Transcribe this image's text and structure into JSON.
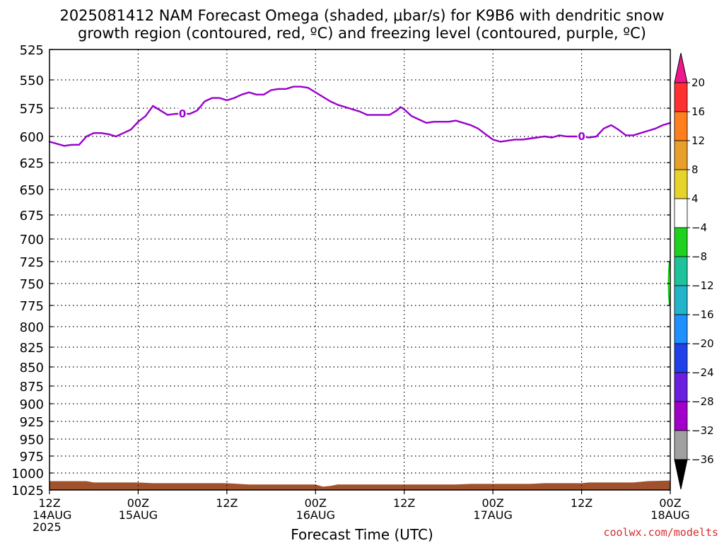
{
  "title_line1": "2025081412 NAM Forecast Omega (shaded, μbar/s) for K9B6 with dendritic snow",
  "title_line2": "growth region (contoured, red, ºC) and freezing level (contoured, purple, ºC)",
  "credit": "coolwx.com/modelts",
  "chart_data": {
    "type": "line",
    "xlabel": "Forecast Time (UTC)",
    "ylabel": "",
    "y_axis": "pressure (hPa), inverted, log-like",
    "ylim": [
      1025,
      525
    ],
    "y_ticks": [
      "525",
      "550",
      "575",
      "600",
      "625",
      "650",
      "675",
      "700",
      "725",
      "750",
      "775",
      "800",
      "825",
      "850",
      "875",
      "900",
      "925",
      "950",
      "975",
      "1000",
      "1025"
    ],
    "x_ticks": [
      {
        "hour": 0,
        "line1": "12Z",
        "line2": "14AUG",
        "line3": "2025"
      },
      {
        "hour": 12,
        "line1": "00Z",
        "line2": "15AUG",
        "line3": ""
      },
      {
        "hour": 24,
        "line1": "12Z",
        "line2": "",
        "line3": ""
      },
      {
        "hour": 36,
        "line1": "00Z",
        "line2": "16AUG",
        "line3": ""
      },
      {
        "hour": 48,
        "line1": "12Z",
        "line2": "",
        "line3": ""
      },
      {
        "hour": 60,
        "line1": "00Z",
        "line2": "17AUG",
        "line3": ""
      },
      {
        "hour": 72,
        "line1": "12Z",
        "line2": "",
        "line3": ""
      },
      {
        "hour": 84,
        "line1": "00Z",
        "line2": "18AUG",
        "line3": ""
      }
    ],
    "xlim": [
      0,
      84
    ],
    "grid": true,
    "freezing_level": {
      "color": "#9900cc",
      "contour_label": "0",
      "label_hours": [
        18,
        72
      ],
      "points": [
        [
          0,
          605
        ],
        [
          1,
          607
        ],
        [
          2,
          609
        ],
        [
          3,
          608
        ],
        [
          4,
          608
        ],
        [
          5,
          600
        ],
        [
          6,
          597
        ],
        [
          7,
          597
        ],
        [
          8,
          598
        ],
        [
          9,
          600
        ],
        [
          10,
          597
        ],
        [
          11,
          594
        ],
        [
          12,
          587
        ],
        [
          13,
          582
        ],
        [
          14,
          573
        ],
        [
          15,
          577
        ],
        [
          16,
          581
        ],
        [
          17,
          580
        ],
        [
          18,
          580
        ],
        [
          19,
          580
        ],
        [
          20,
          577
        ],
        [
          21,
          569
        ],
        [
          22,
          566
        ],
        [
          23,
          566
        ],
        [
          24,
          568
        ],
        [
          25,
          566
        ],
        [
          26,
          563
        ],
        [
          27,
          561
        ],
        [
          28,
          563
        ],
        [
          29,
          563
        ],
        [
          30,
          559
        ],
        [
          31,
          558
        ],
        [
          32,
          558
        ],
        [
          33,
          556
        ],
        [
          34,
          556
        ],
        [
          35,
          557
        ],
        [
          36,
          561
        ],
        [
          37,
          565
        ],
        [
          38,
          569
        ],
        [
          39,
          572
        ],
        [
          40,
          574
        ],
        [
          41,
          576
        ],
        [
          42,
          578
        ],
        [
          43,
          581
        ],
        [
          44,
          581
        ],
        [
          45,
          581
        ],
        [
          46,
          581
        ],
        [
          47,
          577
        ],
        [
          47.5,
          574
        ],
        [
          48,
          576
        ],
        [
          49,
          582
        ],
        [
          50,
          585
        ],
        [
          51,
          588
        ],
        [
          52,
          587
        ],
        [
          53,
          587
        ],
        [
          54,
          587
        ],
        [
          55,
          586
        ],
        [
          56,
          588
        ],
        [
          57,
          590
        ],
        [
          58,
          593
        ],
        [
          59,
          598
        ],
        [
          60,
          603
        ],
        [
          61,
          605
        ],
        [
          62,
          604
        ],
        [
          63,
          603
        ],
        [
          64,
          603
        ],
        [
          65,
          602
        ],
        [
          66,
          601
        ],
        [
          67,
          600
        ],
        [
          68,
          601
        ],
        [
          69,
          599
        ],
        [
          70,
          600
        ],
        [
          71,
          600
        ],
        [
          72,
          600
        ],
        [
          73,
          601
        ],
        [
          74,
          600
        ],
        [
          75,
          593
        ],
        [
          76,
          590
        ],
        [
          77,
          594
        ],
        [
          78,
          599
        ],
        [
          79,
          599
        ],
        [
          80,
          597
        ],
        [
          81,
          595
        ],
        [
          82,
          593
        ],
        [
          83,
          590
        ],
        [
          84,
          588
        ]
      ]
    },
    "terrain": {
      "color": "#a0522d",
      "points": [
        [
          0,
          1012
        ],
        [
          5,
          1012
        ],
        [
          6,
          1014
        ],
        [
          12,
          1014
        ],
        [
          14,
          1015
        ],
        [
          24,
          1015
        ],
        [
          27,
          1017
        ],
        [
          36,
          1017
        ],
        [
          37,
          1020
        ],
        [
          38,
          1019
        ],
        [
          39,
          1017
        ],
        [
          55,
          1017
        ],
        [
          57,
          1016
        ],
        [
          65,
          1016
        ],
        [
          67,
          1015
        ],
        [
          72,
          1015
        ],
        [
          73,
          1014
        ],
        [
          79,
          1014
        ],
        [
          81,
          1012
        ],
        [
          84,
          1011
        ]
      ]
    },
    "omega_edge_shading": {
      "color": "#00cc00",
      "p_top": 725,
      "p_bottom": 775
    }
  },
  "colorbar": {
    "ticks": [
      "20",
      "16",
      "12",
      "8",
      "4",
      "−4",
      "−8",
      "−12",
      "−16",
      "−20",
      "−24",
      "−28",
      "−32",
      "−36"
    ],
    "colors": [
      "#f0168c",
      "#ff3030",
      "#ff7f1e",
      "#e8a02c",
      "#e6d42c",
      "#ffffff",
      "#1fd21f",
      "#1ec39c",
      "#22b4c8",
      "#1e90ff",
      "#2040e8",
      "#6a1ee0",
      "#a000c8",
      "#a0a0a0",
      "#000000"
    ]
  }
}
